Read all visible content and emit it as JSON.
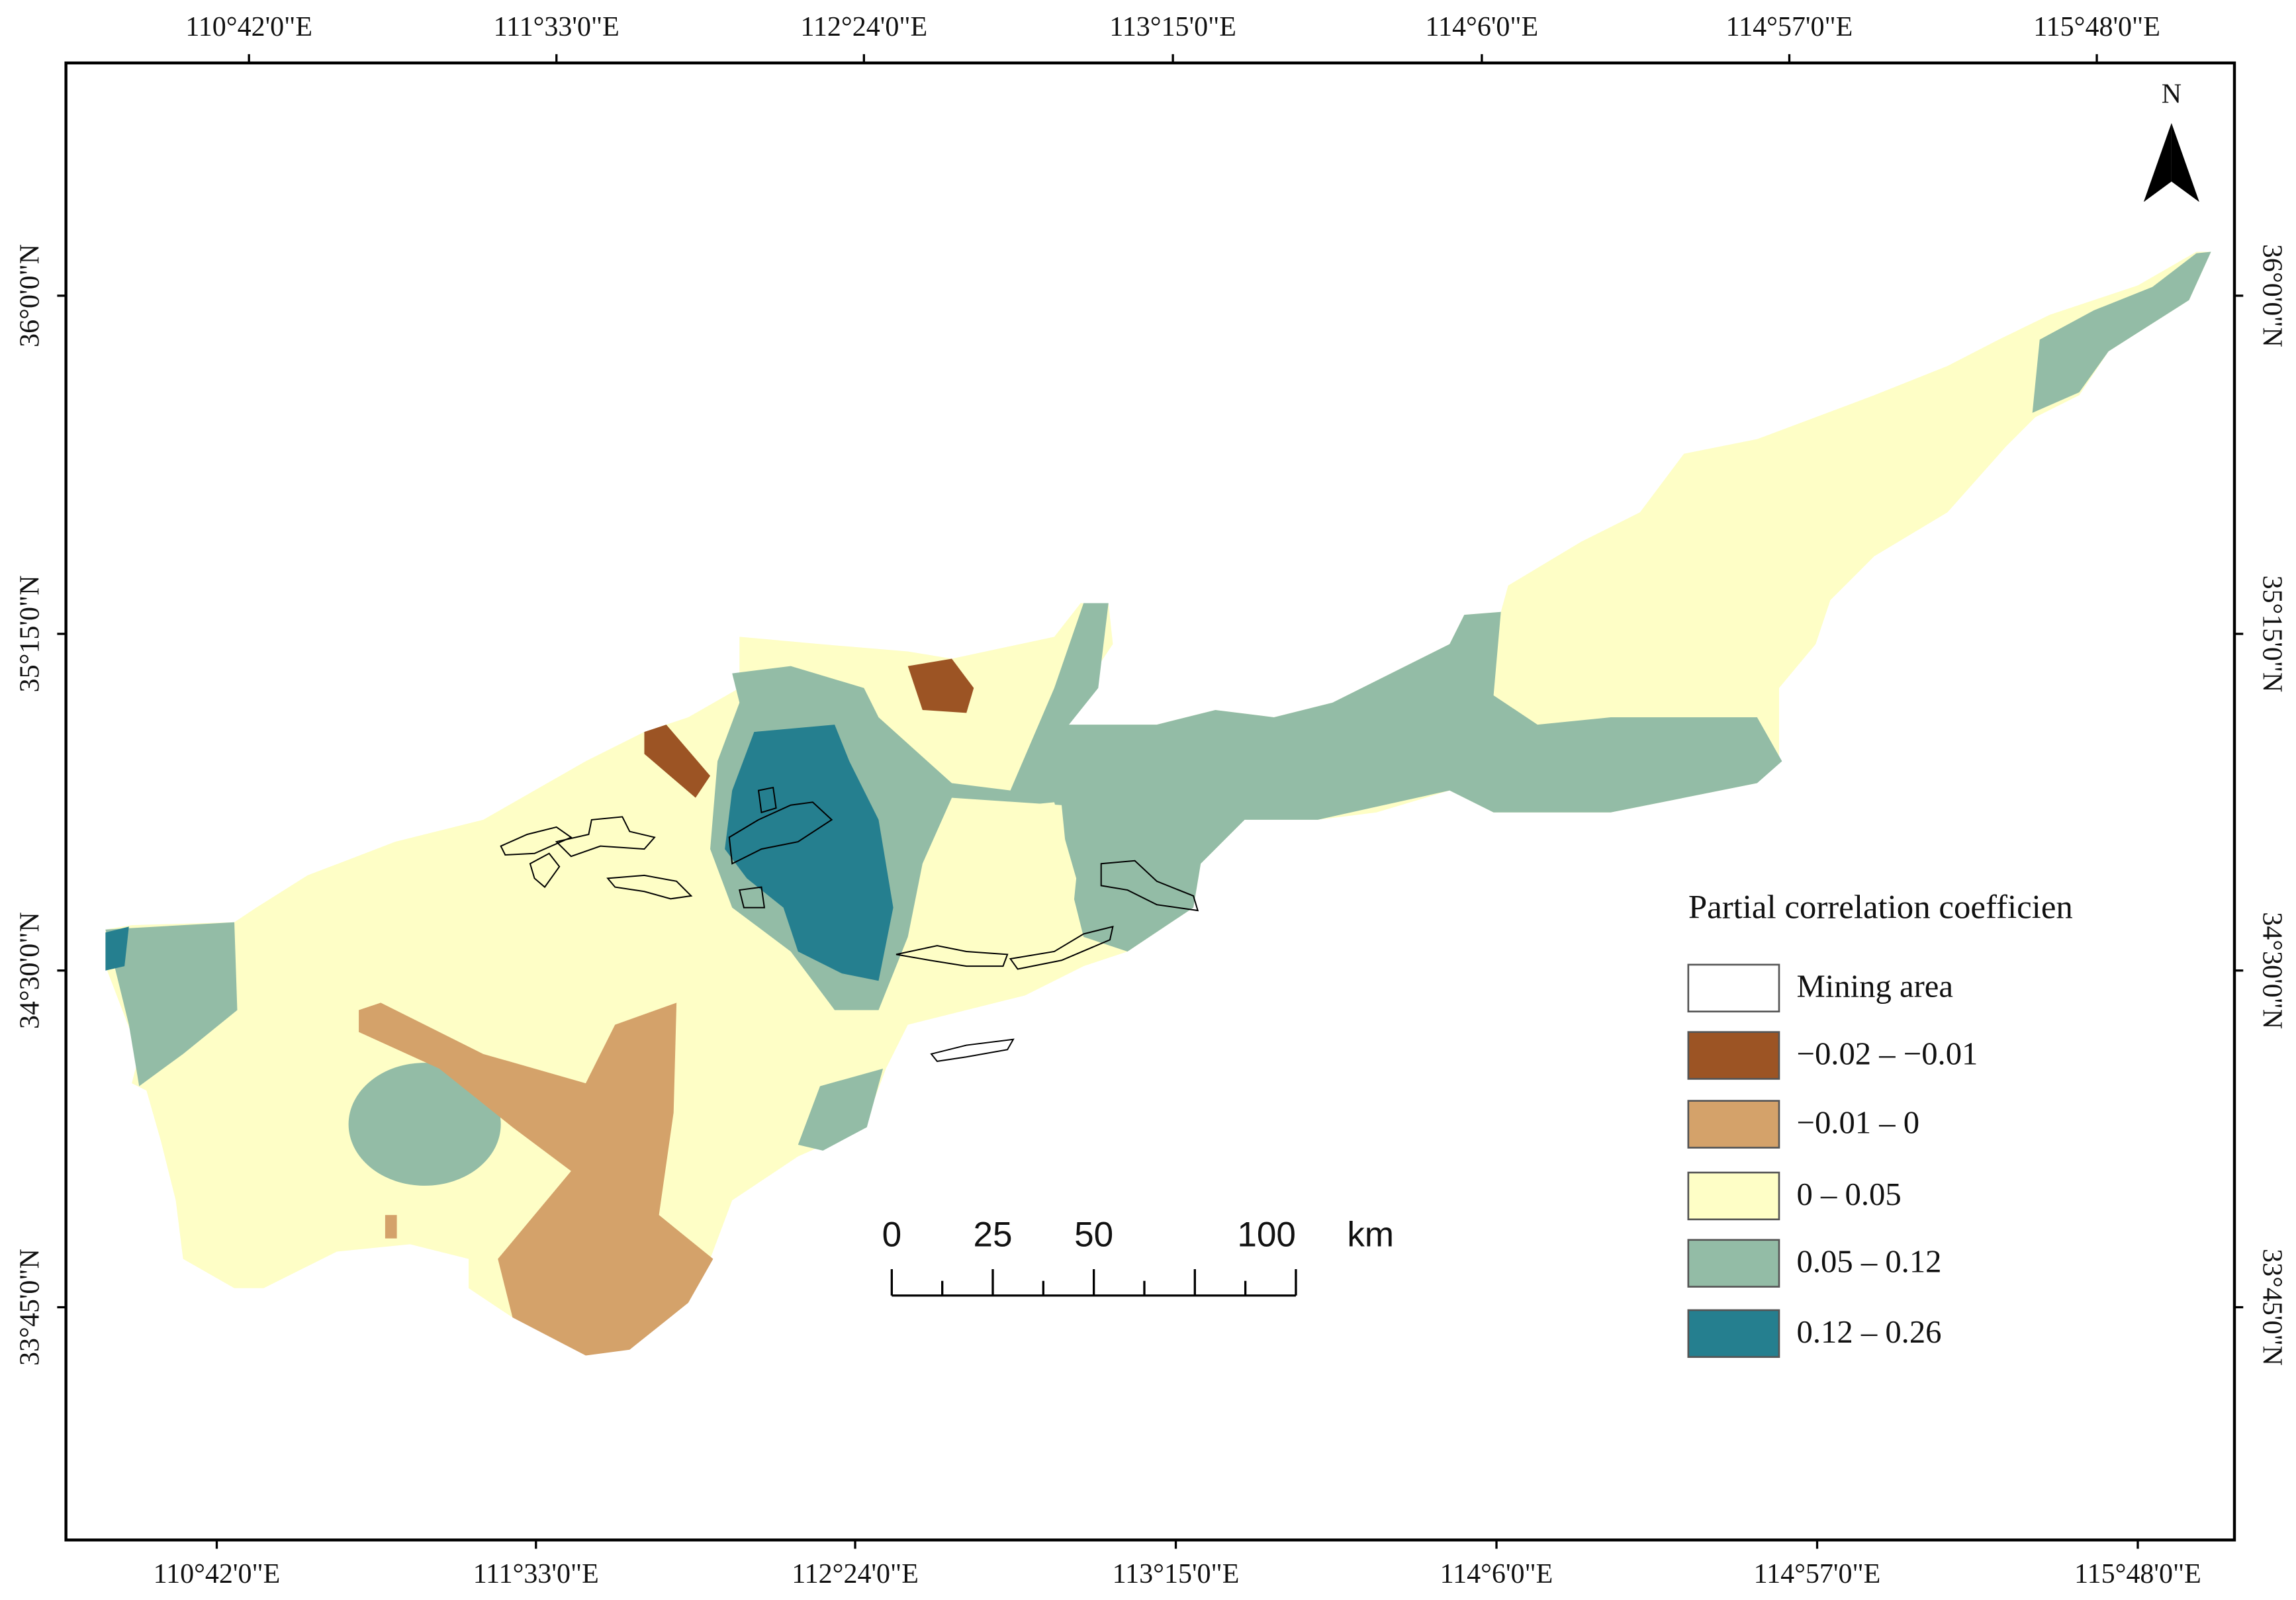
{
  "map": {
    "top_labels": [
      "110°42'0\"E",
      "111°33'0\"E",
      "112°24'0\"E",
      "113°15'0\"E",
      "114°6'0\"E",
      "114°57'0\"E",
      "115°48'0\"E"
    ],
    "bottom_labels": [
      "110°42'0\"E",
      "111°33'0\"E",
      "112°24'0\"E",
      "113°15'0\"E",
      "114°6'0\"E",
      "114°57'0\"E",
      "115°48'0\"E"
    ],
    "left_labels": [
      "36°0'0\"N",
      "35°15'0\"N",
      "34°30'0\"N",
      "33°45'0\"N"
    ],
    "right_labels": [
      "36°0'0\"N",
      "35°15'0\"N",
      "34°30'0\"N",
      "33°45'0\"N"
    ],
    "north": "N",
    "legend": {
      "title": "Partial correlation coefficien",
      "items": [
        {
          "label": "Mining area",
          "color": "#ffffff"
        },
        {
          "label": "−0.02 – −0.01",
          "color": "#9c5424"
        },
        {
          "label": "−0.01 – 0",
          "color": "#d4a26a"
        },
        {
          "label": "0 – 0.05",
          "color": "#fefec6"
        },
        {
          "label": "0.05 – 0.12",
          "color": "#93bca6"
        },
        {
          "label": "0.12 – 0.26",
          "color": "#257f8f"
        }
      ]
    },
    "scale_bar": {
      "labels": [
        0,
        25,
        50,
        100
      ],
      "unit": "km"
    }
  }
}
